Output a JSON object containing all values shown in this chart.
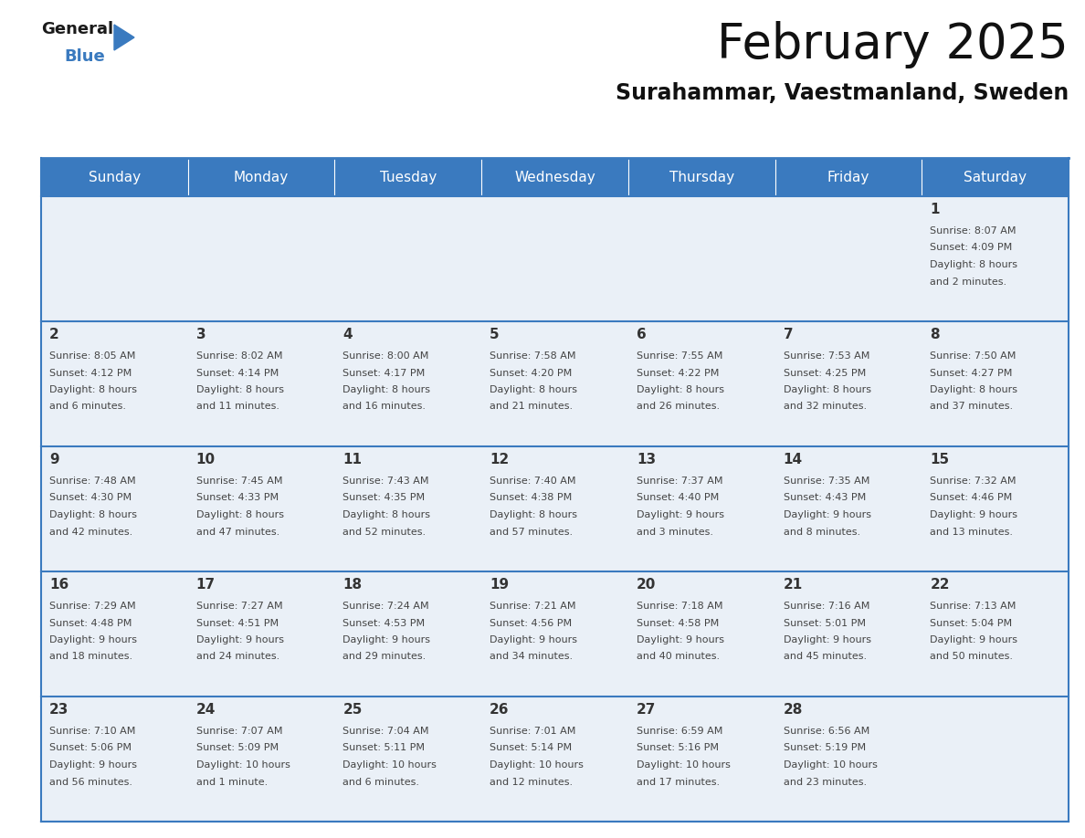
{
  "title": "February 2025",
  "subtitle": "Surahammar, Vaestmanland, Sweden",
  "header_color": "#3a7abf",
  "header_text_color": "#ffffff",
  "days_of_week": [
    "Sunday",
    "Monday",
    "Tuesday",
    "Wednesday",
    "Thursday",
    "Friday",
    "Saturday"
  ],
  "cell_bg_color": "#eaf0f7",
  "border_color": "#3a7abf",
  "text_color": "#444444",
  "day_num_color": "#333333",
  "calendar": [
    [
      {
        "day": null,
        "sunrise": null,
        "sunset": null,
        "daylight": null
      },
      {
        "day": null,
        "sunrise": null,
        "sunset": null,
        "daylight": null
      },
      {
        "day": null,
        "sunrise": null,
        "sunset": null,
        "daylight": null
      },
      {
        "day": null,
        "sunrise": null,
        "sunset": null,
        "daylight": null
      },
      {
        "day": null,
        "sunrise": null,
        "sunset": null,
        "daylight": null
      },
      {
        "day": null,
        "sunrise": null,
        "sunset": null,
        "daylight": null
      },
      {
        "day": 1,
        "sunrise": "8:07 AM",
        "sunset": "4:09 PM",
        "daylight": "8 hours\nand 2 minutes."
      }
    ],
    [
      {
        "day": 2,
        "sunrise": "8:05 AM",
        "sunset": "4:12 PM",
        "daylight": "8 hours\nand 6 minutes."
      },
      {
        "day": 3,
        "sunrise": "8:02 AM",
        "sunset": "4:14 PM",
        "daylight": "8 hours\nand 11 minutes."
      },
      {
        "day": 4,
        "sunrise": "8:00 AM",
        "sunset": "4:17 PM",
        "daylight": "8 hours\nand 16 minutes."
      },
      {
        "day": 5,
        "sunrise": "7:58 AM",
        "sunset": "4:20 PM",
        "daylight": "8 hours\nand 21 minutes."
      },
      {
        "day": 6,
        "sunrise": "7:55 AM",
        "sunset": "4:22 PM",
        "daylight": "8 hours\nand 26 minutes."
      },
      {
        "day": 7,
        "sunrise": "7:53 AM",
        "sunset": "4:25 PM",
        "daylight": "8 hours\nand 32 minutes."
      },
      {
        "day": 8,
        "sunrise": "7:50 AM",
        "sunset": "4:27 PM",
        "daylight": "8 hours\nand 37 minutes."
      }
    ],
    [
      {
        "day": 9,
        "sunrise": "7:48 AM",
        "sunset": "4:30 PM",
        "daylight": "8 hours\nand 42 minutes."
      },
      {
        "day": 10,
        "sunrise": "7:45 AM",
        "sunset": "4:33 PM",
        "daylight": "8 hours\nand 47 minutes."
      },
      {
        "day": 11,
        "sunrise": "7:43 AM",
        "sunset": "4:35 PM",
        "daylight": "8 hours\nand 52 minutes."
      },
      {
        "day": 12,
        "sunrise": "7:40 AM",
        "sunset": "4:38 PM",
        "daylight": "8 hours\nand 57 minutes."
      },
      {
        "day": 13,
        "sunrise": "7:37 AM",
        "sunset": "4:40 PM",
        "daylight": "9 hours\nand 3 minutes."
      },
      {
        "day": 14,
        "sunrise": "7:35 AM",
        "sunset": "4:43 PM",
        "daylight": "9 hours\nand 8 minutes."
      },
      {
        "day": 15,
        "sunrise": "7:32 AM",
        "sunset": "4:46 PM",
        "daylight": "9 hours\nand 13 minutes."
      }
    ],
    [
      {
        "day": 16,
        "sunrise": "7:29 AM",
        "sunset": "4:48 PM",
        "daylight": "9 hours\nand 18 minutes."
      },
      {
        "day": 17,
        "sunrise": "7:27 AM",
        "sunset": "4:51 PM",
        "daylight": "9 hours\nand 24 minutes."
      },
      {
        "day": 18,
        "sunrise": "7:24 AM",
        "sunset": "4:53 PM",
        "daylight": "9 hours\nand 29 minutes."
      },
      {
        "day": 19,
        "sunrise": "7:21 AM",
        "sunset": "4:56 PM",
        "daylight": "9 hours\nand 34 minutes."
      },
      {
        "day": 20,
        "sunrise": "7:18 AM",
        "sunset": "4:58 PM",
        "daylight": "9 hours\nand 40 minutes."
      },
      {
        "day": 21,
        "sunrise": "7:16 AM",
        "sunset": "5:01 PM",
        "daylight": "9 hours\nand 45 minutes."
      },
      {
        "day": 22,
        "sunrise": "7:13 AM",
        "sunset": "5:04 PM",
        "daylight": "9 hours\nand 50 minutes."
      }
    ],
    [
      {
        "day": 23,
        "sunrise": "7:10 AM",
        "sunset": "5:06 PM",
        "daylight": "9 hours\nand 56 minutes."
      },
      {
        "day": 24,
        "sunrise": "7:07 AM",
        "sunset": "5:09 PM",
        "daylight": "10 hours\nand 1 minute."
      },
      {
        "day": 25,
        "sunrise": "7:04 AM",
        "sunset": "5:11 PM",
        "daylight": "10 hours\nand 6 minutes."
      },
      {
        "day": 26,
        "sunrise": "7:01 AM",
        "sunset": "5:14 PM",
        "daylight": "10 hours\nand 12 minutes."
      },
      {
        "day": 27,
        "sunrise": "6:59 AM",
        "sunset": "5:16 PM",
        "daylight": "10 hours\nand 17 minutes."
      },
      {
        "day": 28,
        "sunrise": "6:56 AM",
        "sunset": "5:19 PM",
        "daylight": "10 hours\nand 23 minutes."
      },
      {
        "day": null,
        "sunrise": null,
        "sunset": null,
        "daylight": null
      }
    ]
  ]
}
